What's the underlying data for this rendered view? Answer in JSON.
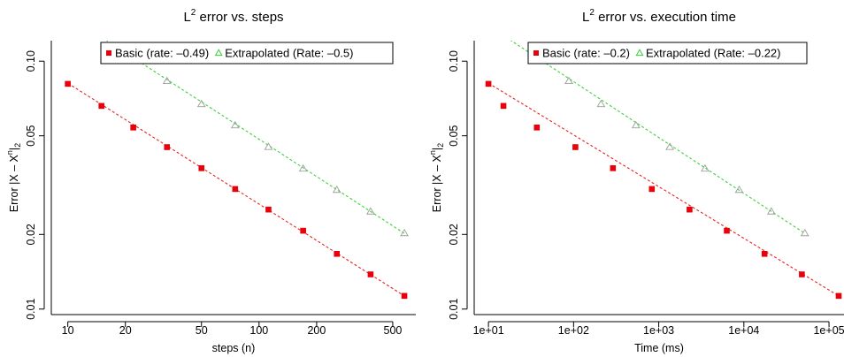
{
  "colors": {
    "basic_fit": "#e8211c",
    "basic_point": "#e8000b",
    "extrap_fit": "#3ed13a",
    "extrap_point": "#9aa09a",
    "extrap_legend": "#22cc22"
  },
  "chart_data": [
    {
      "type": "scatter",
      "scale": "log-log",
      "title_prefix": "L",
      "title_sup": "2",
      "title_suffix": " error vs. steps",
      "xlabel": "steps (n)",
      "ylabel_prefix": "Error  |X – X",
      "ylabel_sup": "n",
      "ylabel_mid": "|",
      "ylabel_sub": "2",
      "xlim": [
        8.2,
        660
      ],
      "ylim": [
        0.0095,
        0.121
      ],
      "xticks": [
        10,
        20,
        50,
        100,
        200,
        500
      ],
      "xtick_labels": [
        "10",
        "20",
        "50",
        "100",
        "200",
        "500"
      ],
      "yticks": [
        0.01,
        0.02,
        0.05,
        0.1
      ],
      "ytick_labels": [
        "0.01",
        "0.02",
        "0.05",
        "0.10"
      ],
      "legend_position": "top-center",
      "series": [
        {
          "key": "basic",
          "name": "Basic (rate: –0.49)",
          "marker": "square",
          "x": [
            10,
            15,
            22,
            33,
            50,
            75,
            112,
            170,
            255,
            383,
            575
          ],
          "y": [
            0.081,
            0.066,
            0.054,
            0.045,
            0.037,
            0.0305,
            0.0252,
            0.0207,
            0.0167,
            0.0138,
            0.0113
          ],
          "fit": {
            "x": [
              10,
              575
            ],
            "y": [
              0.0815,
              0.0113
            ]
          }
        },
        {
          "key": "extrap",
          "name": "Extrapolated (Rate: –0.5)",
          "marker": "triangle",
          "x": [
            22,
            33,
            50,
            75,
            112,
            170,
            255,
            383,
            575
          ],
          "y": [
            0.102,
            0.083,
            0.067,
            0.055,
            0.045,
            0.0368,
            0.0302,
            0.0247,
            0.0202
          ],
          "fit": {
            "x": [
              15,
              575
            ],
            "y": [
              0.125,
              0.0202
            ]
          }
        }
      ]
    },
    {
      "type": "scatter",
      "scale": "log-log",
      "title_prefix": "L",
      "title_sup": "2",
      "title_suffix": " error vs. execution time",
      "xlabel": "Time (ms)",
      "ylabel_prefix": "Error  |X – X",
      "ylabel_sup": "n",
      "ylabel_mid": "|",
      "ylabel_sub": "2",
      "xlim": [
        6.8,
        150000
      ],
      "ylim": [
        0.0095,
        0.121
      ],
      "xticks": [
        10,
        100,
        1000,
        10000,
        100000
      ],
      "xtick_labels": [
        "1e+01",
        "1e+02",
        "1e+03",
        "1e+04",
        "1e+05"
      ],
      "yticks": [
        0.01,
        0.02,
        0.05,
        0.1
      ],
      "ytick_labels": [
        "0.01",
        "0.02",
        "0.05",
        "0.10"
      ],
      "legend_position": "top-right",
      "series": [
        {
          "key": "basic",
          "name": "Basic (rate: –0.2)",
          "marker": "square",
          "x": [
            10,
            15,
            37,
            105,
            290,
            830,
            2300,
            6300,
            17500,
            48000,
            130000
          ],
          "y": [
            0.081,
            0.066,
            0.054,
            0.045,
            0.037,
            0.0305,
            0.0252,
            0.0207,
            0.0167,
            0.0138,
            0.0113
          ],
          "fit": {
            "x": [
              10,
              130000
            ],
            "y": [
              0.0815,
              0.0113
            ]
          }
        },
        {
          "key": "extrap",
          "name": "Extrapolated (Rate: –0.22)",
          "marker": "triangle",
          "x": [
            37,
            88,
            210,
            540,
            1350,
            3500,
            8800,
            21000,
            52000
          ],
          "y": [
            0.102,
            0.083,
            0.067,
            0.055,
            0.045,
            0.0368,
            0.0302,
            0.0247,
            0.0202
          ],
          "fit": {
            "x": [
              16,
              52000
            ],
            "y": [
              0.125,
              0.0202
            ]
          }
        }
      ]
    }
  ]
}
